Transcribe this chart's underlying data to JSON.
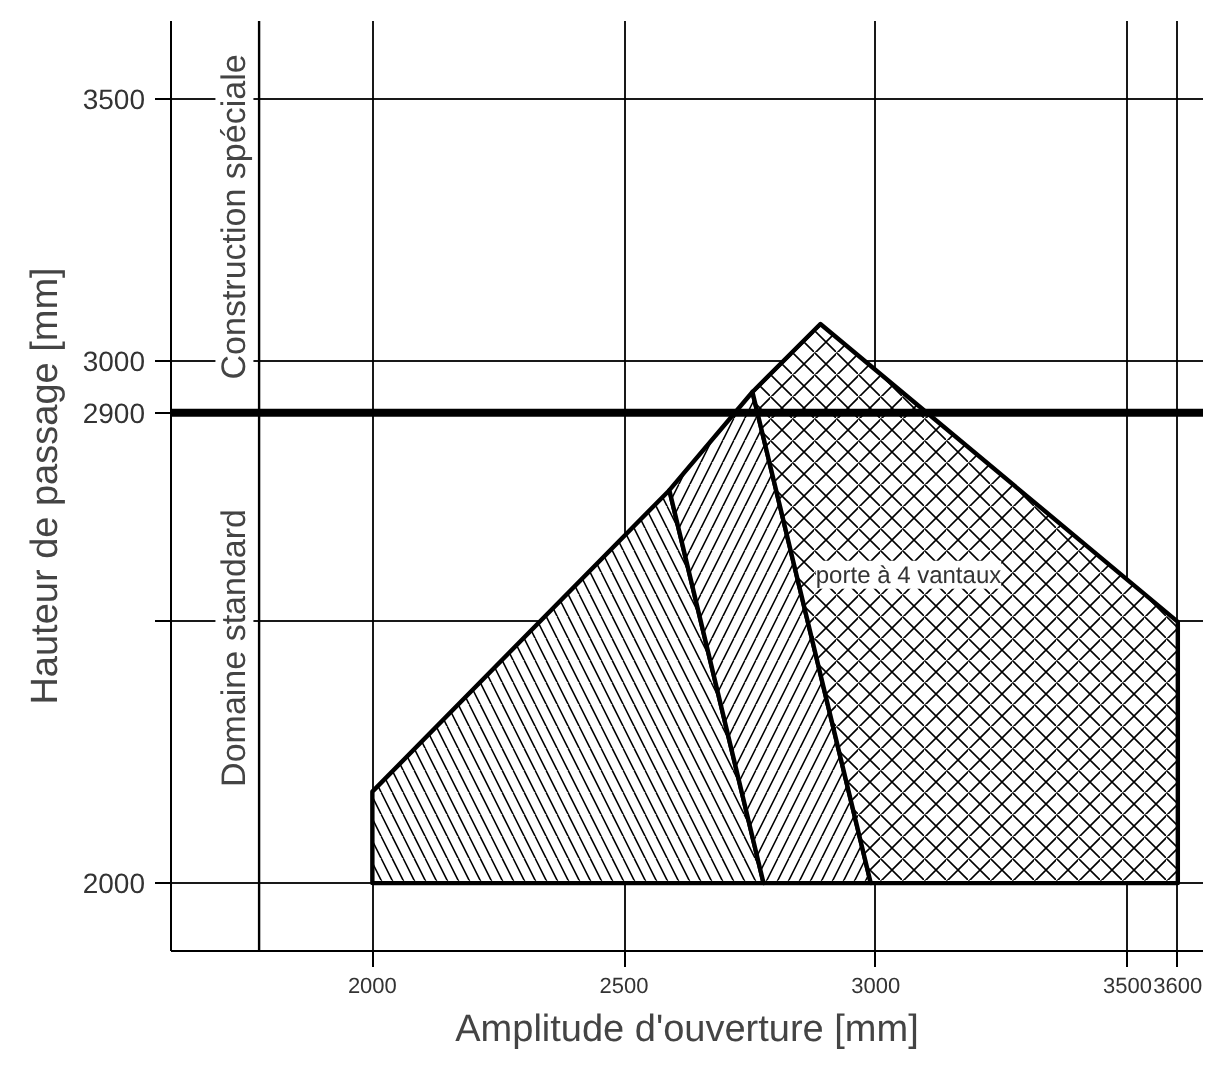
{
  "chart_data": {
    "type": "area",
    "xlabel": "Amplitude d'ouverture [mm]",
    "ylabel": "Hauteur de passage [mm]",
    "xlim": [
      1600,
      3650
    ],
    "ylim": [
      1870,
      3650
    ],
    "xticks": [
      2000,
      2500,
      3000,
      3500,
      3600
    ],
    "yticks": [
      2000,
      {
        "value": 2500,
        "label": null
      },
      2900,
      3000,
      3500
    ],
    "grid": true,
    "series": [
      {
        "color": "#000000",
        "x": [
          2000,
          2000,
          2590,
          2777
        ],
        "values": [
          2000,
          2175,
          2752,
          2000
        ]
      },
      {
        "color": "#000000",
        "x": [
          2777,
          2590,
          2755,
          2990
        ],
        "values": [
          2000,
          2752,
          2940,
          2000
        ]
      },
      {
        "color": "#000000",
        "x": [
          2990,
          2755,
          2890,
          3600,
          3600
        ],
        "values": [
          2000,
          2940,
          3070,
          2500,
          2000
        ]
      }
    ],
    "ref_lines": [
      {
        "axis": "y",
        "value": 2900,
        "color": "#000000"
      },
      {
        "axis": "x",
        "value": 1775,
        "color": "#000000"
      }
    ],
    "annotations": [
      "Construction spéciale",
      "Domaine standard",
      "porte à 4 vantaux"
    ]
  }
}
